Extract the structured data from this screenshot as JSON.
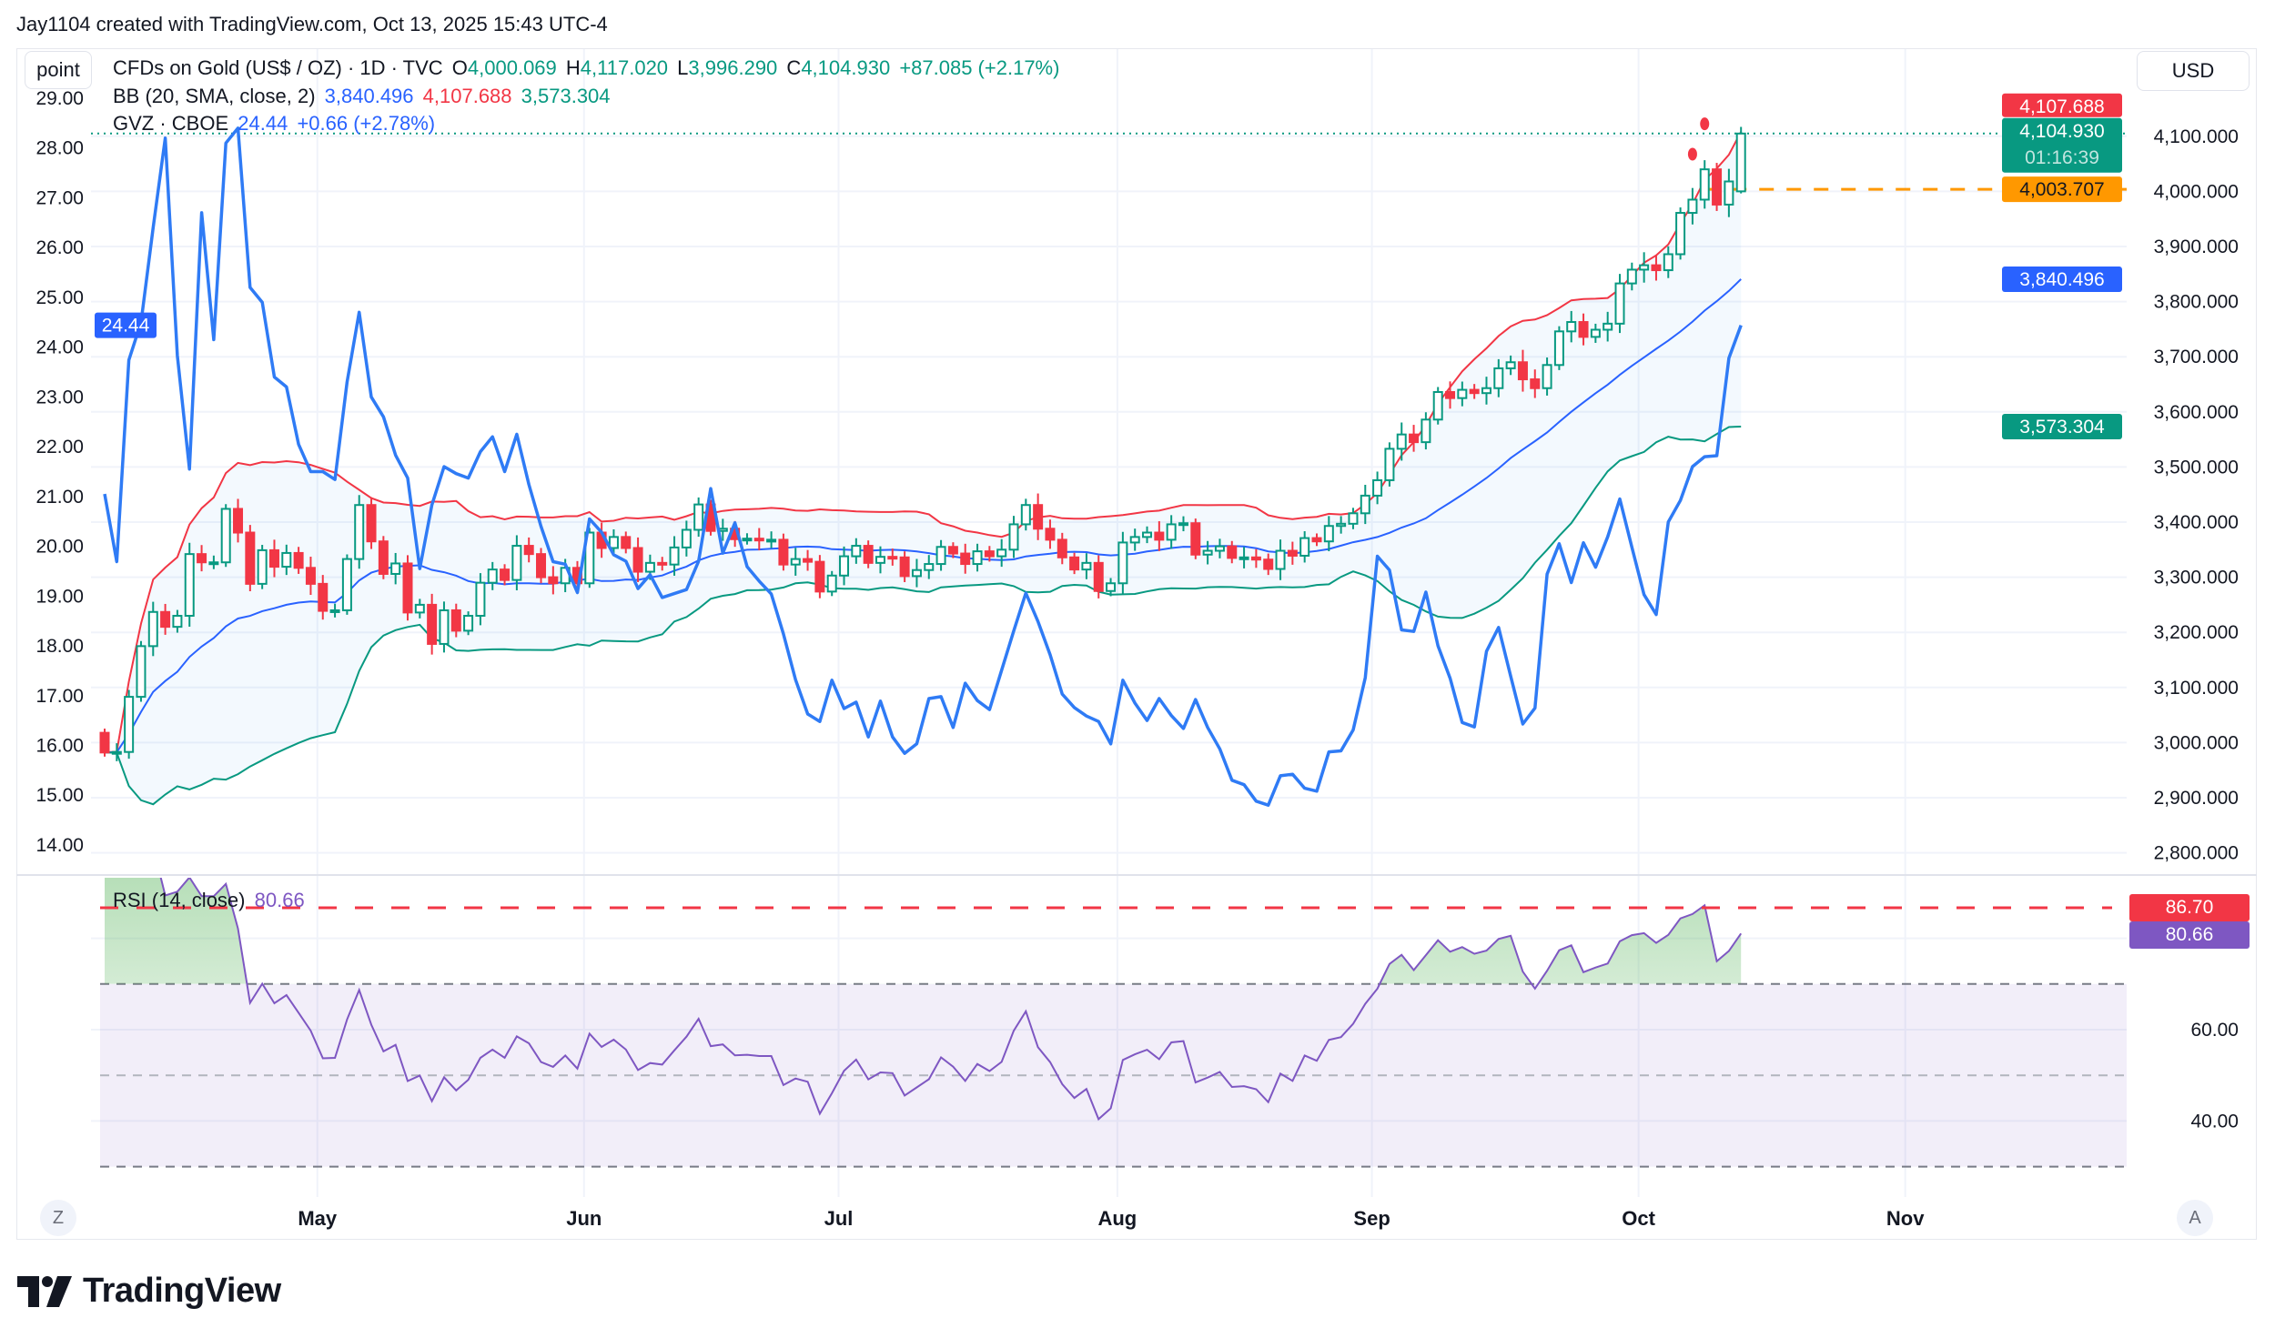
{
  "header": {
    "attribution": "Jay1104 created with TradingView.com, Oct 13, 2025 15:43 UTC-4"
  },
  "toolbar": {
    "scale_mode_button": "point",
    "currency_button": "USD",
    "zoom_button": "Z",
    "auto_button": "A"
  },
  "legend": {
    "symbol": "CFDs on Gold (US$ / OZ) · 1D · TVC",
    "open_label": "O",
    "open": "4,000.069",
    "high_label": "H",
    "high": "4,117.020",
    "low_label": "L",
    "low": "3,996.290",
    "close_label": "C",
    "close": "4,104.930",
    "change": "+87.085 (+2.17%)",
    "bb_title": "BB (20, SMA, close, 2)",
    "bb_basis": "3,840.496",
    "bb_upper": "4,107.688",
    "bb_lower": "3,573.304",
    "gvz_title": "GVZ · CBOE",
    "gvz_value": "24.44",
    "gvz_change": "+0.66 (+2.78%)",
    "rsi_title": "RSI (14, close)",
    "rsi_value": "80.66"
  },
  "price_tags": {
    "bb_upper": "4,107.688",
    "last": "4,104.930",
    "countdown": "01:16:39",
    "hline": "4,003.707",
    "bb_basis": "3,840.496",
    "bb_lower": "3,573.304",
    "gvz": "24.44",
    "rsi_hline": "86.70",
    "rsi": "80.66"
  },
  "logo": {
    "text": "TradingView"
  },
  "colors": {
    "up": "#089981",
    "down": "#f23645",
    "bb_basis": "#2962ff",
    "bb_upper": "#f23645",
    "bb_lower": "#089981",
    "gvz": "#2f7bf5",
    "rsi": "#7e57c2",
    "hline": "#ff9800"
  },
  "chart_data": {
    "type": "candlestick",
    "symbol": "CFDs on Gold (US$ / OZ)",
    "interval": "1D",
    "last_bar": {
      "open": 4000.069,
      "high": 4117.02,
      "low": 3996.29,
      "close": 4104.93
    },
    "price_axis": {
      "min": 2800,
      "max": 4100,
      "step": 100,
      "ticks": [
        "2,800.000",
        "2,900.000",
        "3,000.000",
        "3,100.000",
        "3,200.000",
        "3,300.000",
        "3,400.000",
        "3,500.000",
        "3,600.000",
        "3,700.000",
        "3,800.000",
        "3,900.000",
        "4,000.000",
        "4,100.000"
      ]
    },
    "gvz_axis": {
      "ticks": [
        "14.00",
        "15.00",
        "16.00",
        "17.00",
        "18.00",
        "19.00",
        "20.00",
        "21.00",
        "22.00",
        "23.00",
        "24.00",
        "25.00",
        "26.00",
        "27.00",
        "28.00",
        "29.00"
      ]
    },
    "rsi_axis": {
      "ticks": [
        "40.00",
        "60.00"
      ],
      "upper_band": 70,
      "middle": 50,
      "lower_band": 30,
      "hline": 86.7
    },
    "hline_price": 4003.707,
    "time_axis": [
      {
        "label": "May",
        "month": 5
      },
      {
        "label": "Jun",
        "month": 6
      },
      {
        "label": "Jul",
        "month": 7
      },
      {
        "label": "Aug",
        "month": 8
      },
      {
        "label": "Sep",
        "month": 9
      },
      {
        "label": "Oct",
        "month": 10
      },
      {
        "label": "Nov",
        "month": 11
      }
    ],
    "months": [
      {
        "year": 2025,
        "month": 4,
        "days": [
          7,
          8,
          9,
          10,
          11,
          14,
          15,
          16,
          17,
          18,
          21,
          22,
          23,
          24,
          25,
          28,
          29,
          30
        ],
        "close": [
          2982,
          2983,
          3083,
          3175,
          3237,
          3210,
          3230,
          3342,
          3327,
          3327,
          3424,
          3381,
          3288,
          3349,
          3319,
          3344,
          3317,
          3288
        ]
      },
      {
        "year": 2025,
        "month": 5,
        "days": [
          1,
          2,
          5,
          6,
          7,
          8,
          9,
          12,
          13,
          14,
          15,
          16,
          19,
          20,
          21,
          22,
          23,
          26,
          27,
          28,
          29,
          30
        ],
        "close": [
          3239,
          3240,
          3333,
          3431,
          3365,
          3306,
          3325,
          3236,
          3250,
          3179,
          3240,
          3203,
          3230,
          3290,
          3314,
          3295,
          3357,
          3342,
          3300,
          3289,
          3317,
          3289
        ]
      },
      {
        "year": 2025,
        "month": 6,
        "days": [
          2,
          3,
          4,
          5,
          6,
          9,
          10,
          11,
          12,
          13,
          16,
          17,
          18,
          19,
          20,
          23,
          24,
          25,
          26,
          27,
          30
        ],
        "close": [
          3381,
          3353,
          3373,
          3353,
          3310,
          3326,
          3323,
          3354,
          3386,
          3432,
          3384,
          3388,
          3369,
          3370,
          3368,
          3368,
          3323,
          3333,
          3328,
          3274,
          3303
        ]
      },
      {
        "year": 2025,
        "month": 7,
        "days": [
          1,
          2,
          3,
          4,
          7,
          8,
          9,
          10,
          11,
          14,
          15,
          16,
          17,
          18,
          21,
          22,
          23,
          24,
          25,
          28,
          29,
          30,
          31
        ],
        "close": [
          3338,
          3357,
          3326,
          3337,
          3336,
          3302,
          3313,
          3324,
          3355,
          3343,
          3324,
          3347,
          3338,
          3350,
          3396,
          3431,
          3388,
          3368,
          3336,
          3314,
          3326,
          3275,
          3289
        ]
      },
      {
        "year": 2025,
        "month": 8,
        "days": [
          1,
          4,
          5,
          6,
          7,
          8,
          11,
          12,
          13,
          14,
          15,
          18,
          19,
          20,
          21,
          22,
          25,
          26,
          27,
          28,
          29
        ],
        "close": [
          3363,
          3373,
          3381,
          3368,
          3396,
          3398,
          3341,
          3348,
          3356,
          3335,
          3336,
          3332,
          3315,
          3348,
          3339,
          3371,
          3365,
          3393,
          3397,
          3416,
          3448
        ]
      },
      {
        "year": 2025,
        "month": 9,
        "days": [
          1,
          2,
          3,
          4,
          5,
          8,
          9,
          10,
          11,
          12,
          15,
          16,
          17,
          18,
          19,
          22,
          23,
          24,
          25,
          26,
          29,
          30
        ],
        "close": [
          3476,
          3533,
          3559,
          3545,
          3586,
          3636,
          3625,
          3640,
          3634,
          3643,
          3679,
          3690,
          3659,
          3643,
          3685,
          3746,
          3763,
          3736,
          3749,
          3760,
          3833,
          3858
        ]
      },
      {
        "year": 2025,
        "month": 10,
        "days": [
          1,
          2,
          3,
          6,
          7,
          8,
          9,
          10,
          13
        ],
        "close": [
          3866,
          3857,
          3886,
          3961,
          3985,
          4040,
          3976,
          4018,
          4104.93
        ]
      }
    ],
    "gvz": [
      21.05,
      19.69,
      23.74,
      24.5,
      26.4,
      28.2,
      23.83,
      21.55,
      26.7,
      24.15,
      28.1,
      28.4,
      25.2,
      24.9,
      23.4,
      23.2,
      22.05,
      21.5,
      21.5,
      21.34,
      23.3,
      24.7,
      23.0,
      22.6,
      21.83,
      21.37,
      19.55,
      20.83,
      21.6,
      21.46,
      21.37,
      21.9,
      22.2,
      21.5,
      22.25,
      21.24,
      20.4,
      19.69,
      19.64,
      19.07,
      20.55,
      20.28,
      19.83,
      19.7,
      19.15,
      19.43,
      18.97,
      19.05,
      19.13,
      19.7,
      21.16,
      19.86,
      20.47,
      19.59,
      19.3,
      19.04,
      18.24,
      17.32,
      16.63,
      16.48,
      17.31,
      16.74,
      16.87,
      16.17,
      16.89,
      16.17,
      15.84,
      16.03,
      16.94,
      16.98,
      16.36,
      17.25,
      16.9,
      16.72,
      17.51,
      18.3,
      19.06,
      18.49,
      17.82,
      17.03,
      16.76,
      16.59,
      16.48,
      16.03,
      17.31,
      16.85,
      16.5,
      16.94,
      16.6,
      16.34,
      16.92,
      16.36,
      15.93,
      15.3,
      15.21,
      14.88,
      14.8,
      15.39,
      15.42,
      15.14,
      15.08,
      15.87,
      15.89,
      16.31,
      17.36,
      19.8,
      19.52,
      18.32,
      18.29,
      19.08,
      18.0,
      17.35,
      16.46,
      16.37,
      17.89,
      18.37,
      17.39,
      16.43,
      16.75,
      19.44,
      20.05,
      19.27,
      20.07,
      19.58,
      20.19,
      20.95,
      19.98,
      19.03,
      18.63,
      20.49,
      20.92,
      21.6,
      21.8,
      21.82,
      23.78,
      24.44
    ],
    "bollinger": {
      "length": 20,
      "ma": "SMA",
      "source": "close",
      "mult": 2
    },
    "rsi": {
      "length": 14,
      "source": "close"
    },
    "grid": true
  }
}
